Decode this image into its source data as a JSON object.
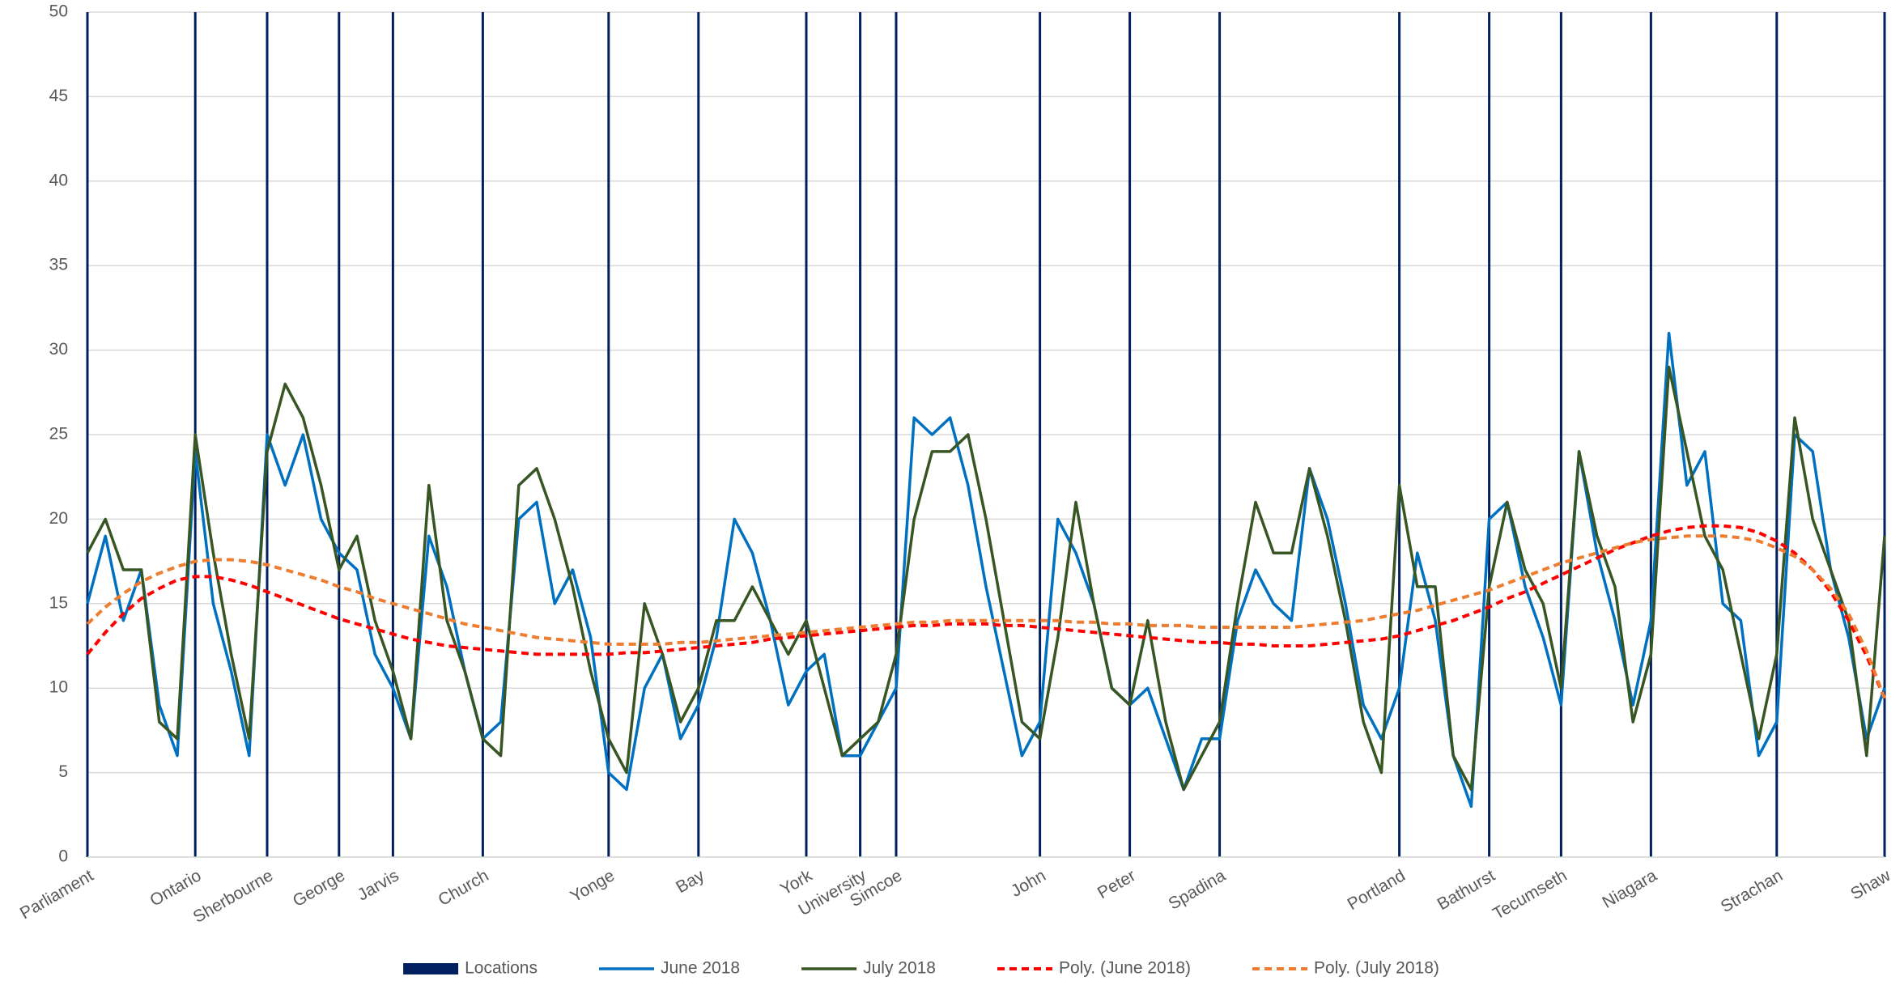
{
  "chart_data": {
    "type": "line",
    "categories": [
      "Parliament",
      null,
      null,
      null,
      null,
      null,
      "Ontario",
      null,
      null,
      null,
      "Sherbourne",
      null,
      null,
      null,
      "George",
      null,
      null,
      "Jarvis",
      null,
      null,
      null,
      null,
      "Church",
      null,
      null,
      null,
      null,
      null,
      null,
      "Yonge",
      null,
      null,
      null,
      null,
      "Bay",
      null,
      null,
      null,
      null,
      null,
      "York",
      null,
      null,
      "University",
      null,
      "Simcoe",
      null,
      null,
      null,
      null,
      null,
      null,
      null,
      "John",
      null,
      null,
      null,
      null,
      "Peter",
      null,
      null,
      null,
      null,
      "Spadina",
      null,
      null,
      null,
      null,
      null,
      null,
      null,
      null,
      null,
      "Portland",
      null,
      null,
      null,
      null,
      "Bathurst",
      null,
      null,
      null,
      "Tecumseth",
      null,
      null,
      null,
      null,
      "Niagara",
      null,
      null,
      null,
      null,
      null,
      null,
      "Strachan",
      null,
      null,
      null,
      null,
      null,
      "Shaw"
    ],
    "series": [
      {
        "name": "Locations",
        "kind": "bar",
        "color": "#002060",
        "values": [
          50,
          null,
          null,
          null,
          null,
          null,
          50,
          null,
          null,
          null,
          50,
          null,
          null,
          null,
          50,
          null,
          null,
          50,
          null,
          null,
          null,
          null,
          50,
          null,
          null,
          null,
          null,
          null,
          null,
          50,
          null,
          null,
          null,
          null,
          50,
          null,
          null,
          null,
          null,
          null,
          50,
          null,
          null,
          50,
          null,
          50,
          null,
          null,
          null,
          null,
          null,
          null,
          null,
          50,
          null,
          null,
          null,
          null,
          50,
          null,
          null,
          null,
          null,
          50,
          null,
          null,
          null,
          null,
          null,
          null,
          null,
          null,
          null,
          50,
          null,
          null,
          null,
          null,
          50,
          null,
          null,
          null,
          50,
          null,
          null,
          null,
          null,
          50,
          null,
          null,
          null,
          null,
          null,
          null,
          50,
          null,
          null,
          null,
          null,
          null,
          50
        ]
      },
      {
        "name": "June 2018",
        "kind": "line",
        "color": "#0070c0",
        "dash": false,
        "values": [
          15,
          19,
          14,
          17,
          9,
          6,
          24,
          15,
          11,
          6,
          25,
          22,
          25,
          20,
          18,
          17,
          12,
          10,
          7,
          19,
          16,
          11,
          7,
          8,
          20,
          21,
          15,
          17,
          13,
          5,
          4,
          10,
          12,
          7,
          9,
          13,
          20,
          18,
          14,
          9,
          11,
          12,
          6,
          6,
          8,
          10,
          26,
          25,
          26,
          22,
          16,
          11,
          6,
          8,
          20,
          18,
          15,
          10,
          9,
          10,
          7,
          4,
          7,
          7,
          14,
          17,
          15,
          14,
          23,
          20,
          15,
          9,
          7,
          10,
          18,
          14,
          6,
          3,
          20,
          21,
          16,
          13,
          9,
          24,
          18,
          14,
          9,
          14,
          31,
          22,
          24,
          15,
          14,
          6,
          8,
          25,
          24,
          17,
          13,
          7,
          10
        ]
      },
      {
        "name": "July 2018",
        "kind": "line",
        "color": "#375623",
        "dash": false,
        "values": [
          18,
          20,
          17,
          17,
          8,
          7,
          25,
          18,
          12,
          7,
          24,
          28,
          26,
          22,
          17,
          19,
          14,
          11,
          7,
          22,
          14,
          11,
          7,
          6,
          22,
          23,
          20,
          16,
          11,
          7,
          5,
          15,
          12,
          8,
          10,
          14,
          14,
          16,
          14,
          12,
          14,
          10,
          6,
          7,
          8,
          12,
          20,
          24,
          24,
          25,
          20,
          14,
          8,
          7,
          13,
          21,
          15,
          10,
          9,
          14,
          8,
          4,
          6,
          8,
          15,
          21,
          18,
          18,
          23,
          19,
          14,
          8,
          5,
          22,
          16,
          16,
          6,
          4,
          16,
          21,
          17,
          15,
          10,
          24,
          19,
          16,
          8,
          12,
          29,
          24,
          19,
          17,
          12,
          7,
          12,
          26,
          20,
          17,
          14,
          6,
          19
        ]
      },
      {
        "name": "Poly. (June 2018)",
        "kind": "line",
        "color": "#ff0000",
        "dash": true,
        "values": [
          12.0,
          13.3,
          14.4,
          15.3,
          15.9,
          16.4,
          16.6,
          16.6,
          16.4,
          16.1,
          15.7,
          15.3,
          14.9,
          14.5,
          14.1,
          13.8,
          13.5,
          13.2,
          12.9,
          12.7,
          12.5,
          12.4,
          12.3,
          12.2,
          12.1,
          12.0,
          12.0,
          12.0,
          12.0,
          12.0,
          12.1,
          12.1,
          12.2,
          12.3,
          12.4,
          12.5,
          12.6,
          12.7,
          12.9,
          13.0,
          13.1,
          13.2,
          13.3,
          13.4,
          13.5,
          13.6,
          13.7,
          13.7,
          13.8,
          13.8,
          13.8,
          13.7,
          13.7,
          13.6,
          13.5,
          13.4,
          13.3,
          13.2,
          13.1,
          13.0,
          12.9,
          12.8,
          12.7,
          12.7,
          12.6,
          12.6,
          12.5,
          12.5,
          12.5,
          12.6,
          12.7,
          12.8,
          12.9,
          13.1,
          13.4,
          13.7,
          14.0,
          14.4,
          14.8,
          15.3,
          15.7,
          16.2,
          16.7,
          17.2,
          17.7,
          18.2,
          18.6,
          19.0,
          19.3,
          19.5,
          19.6,
          19.6,
          19.5,
          19.2,
          18.7,
          18.0,
          17.0,
          15.7,
          14.0,
          11.9,
          9.4
        ]
      },
      {
        "name": "Poly. (July 2018)",
        "kind": "line",
        "color": "#ed7d31",
        "dash": true,
        "values": [
          13.8,
          14.8,
          15.6,
          16.3,
          16.8,
          17.2,
          17.5,
          17.6,
          17.6,
          17.5,
          17.3,
          17.0,
          16.7,
          16.4,
          16.0,
          15.7,
          15.3,
          15.0,
          14.7,
          14.4,
          14.1,
          13.8,
          13.6,
          13.4,
          13.2,
          13.0,
          12.9,
          12.8,
          12.7,
          12.6,
          12.6,
          12.6,
          12.6,
          12.7,
          12.7,
          12.8,
          12.9,
          13.0,
          13.1,
          13.2,
          13.3,
          13.4,
          13.5,
          13.6,
          13.7,
          13.8,
          13.9,
          13.9,
          14.0,
          14.0,
          14.0,
          14.0,
          14.0,
          14.0,
          14.0,
          13.9,
          13.9,
          13.8,
          13.8,
          13.7,
          13.7,
          13.7,
          13.6,
          13.6,
          13.6,
          13.6,
          13.6,
          13.6,
          13.7,
          13.8,
          13.9,
          14.0,
          14.2,
          14.4,
          14.6,
          14.9,
          15.2,
          15.5,
          15.8,
          16.2,
          16.6,
          17.0,
          17.4,
          17.7,
          18.0,
          18.3,
          18.6,
          18.8,
          18.9,
          19.0,
          19.0,
          19.0,
          18.9,
          18.7,
          18.3,
          17.8,
          17.0,
          15.9,
          14.4,
          12.2,
          9.4
        ]
      }
    ],
    "ylim": [
      0,
      50
    ],
    "yticks": [
      0,
      5,
      10,
      15,
      20,
      25,
      30,
      35,
      40,
      45,
      50
    ],
    "grid": true,
    "legend": "bottom"
  }
}
